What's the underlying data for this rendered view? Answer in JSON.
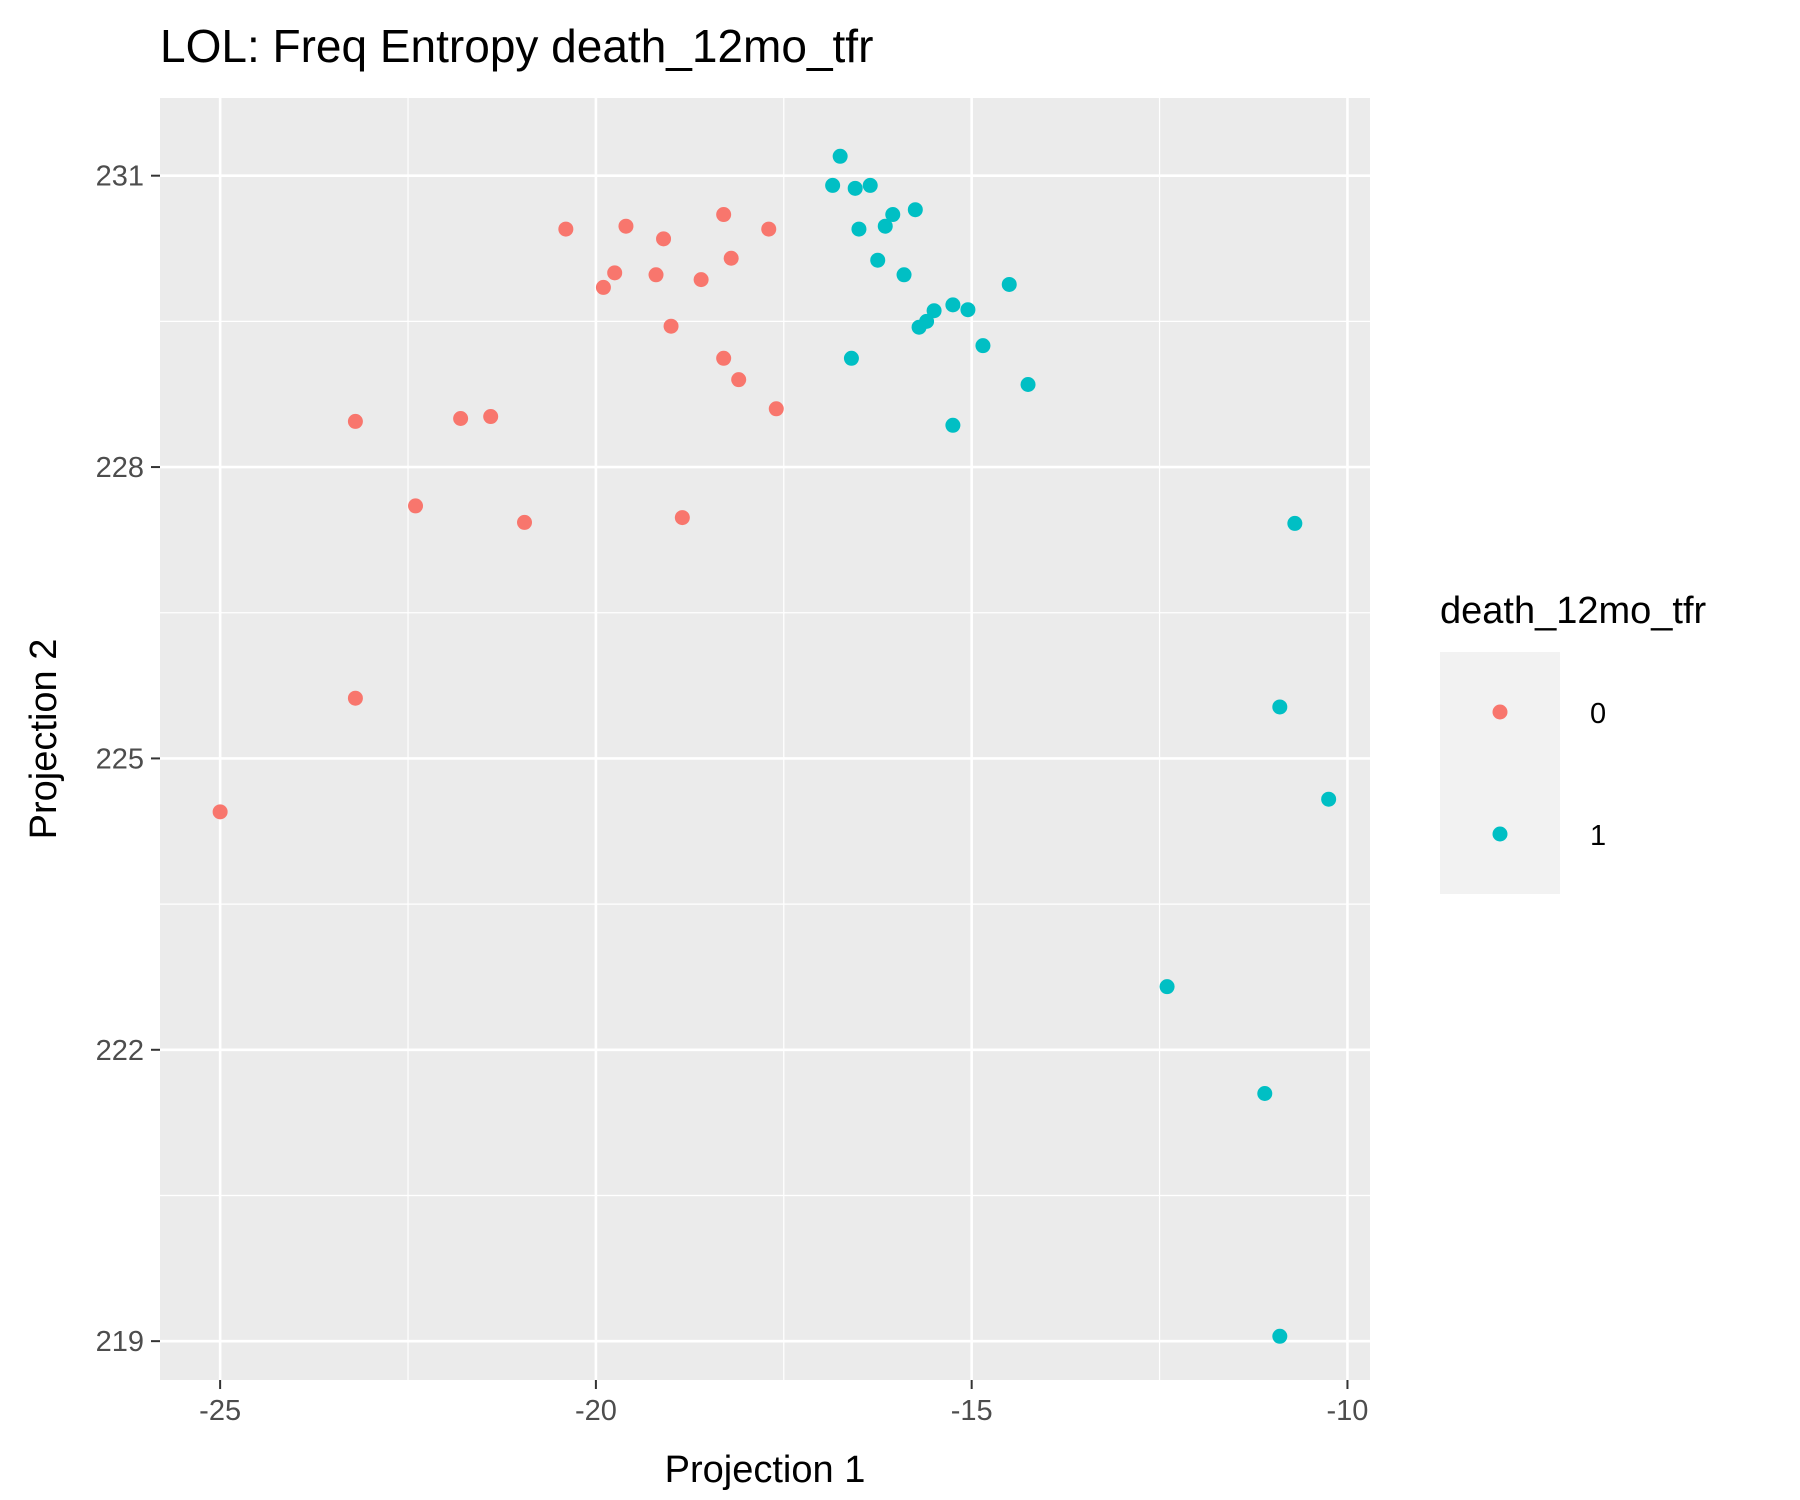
{
  "chart_data": {
    "type": "scatter",
    "title": "LOL: Freq Entropy death_12mo_tfr",
    "xlabel": "Projection 1",
    "ylabel": "Projection 2",
    "xlim": [
      -25.8,
      -9.7
    ],
    "ylim": [
      218.6,
      231.8
    ],
    "xticks": [
      -25,
      -20,
      -15,
      -10
    ],
    "yticks": [
      219,
      222,
      225,
      228,
      231
    ],
    "grid": true,
    "legend": {
      "title": "death_12mo_tfr",
      "placement": "right"
    },
    "series": [
      {
        "name": "0",
        "color": "#F8766D",
        "points": [
          [
            -20.4,
            230.45
          ],
          [
            -19.6,
            230.48
          ],
          [
            -19.1,
            230.35
          ],
          [
            -18.3,
            230.6
          ],
          [
            -17.7,
            230.45
          ],
          [
            -19.9,
            229.85
          ],
          [
            -19.75,
            230.0
          ],
          [
            -19.2,
            229.98
          ],
          [
            -18.6,
            229.93
          ],
          [
            -18.2,
            230.15
          ],
          [
            -19.0,
            229.45
          ],
          [
            -18.3,
            229.12
          ],
          [
            -18.1,
            228.9
          ],
          [
            -17.6,
            228.6
          ],
          [
            -23.2,
            228.47
          ],
          [
            -21.8,
            228.5
          ],
          [
            -21.4,
            228.52
          ],
          [
            -22.4,
            227.6
          ],
          [
            -20.95,
            227.43
          ],
          [
            -18.85,
            227.48
          ],
          [
            -23.2,
            225.62
          ],
          [
            -25.0,
            224.45
          ]
        ]
      },
      {
        "name": "1",
        "color": "#00BFC4",
        "points": [
          [
            -16.75,
            231.2
          ],
          [
            -16.85,
            230.9
          ],
          [
            -16.55,
            230.87
          ],
          [
            -16.35,
            230.9
          ],
          [
            -15.75,
            230.65
          ],
          [
            -16.05,
            230.6
          ],
          [
            -16.15,
            230.48
          ],
          [
            -16.5,
            230.45
          ],
          [
            -16.25,
            230.13
          ],
          [
            -15.9,
            229.98
          ],
          [
            -14.5,
            229.88
          ],
          [
            -15.25,
            229.67
          ],
          [
            -15.05,
            229.62
          ],
          [
            -15.5,
            229.61
          ],
          [
            -15.6,
            229.5
          ],
          [
            -15.7,
            229.44
          ],
          [
            -14.85,
            229.25
          ],
          [
            -16.6,
            229.12
          ],
          [
            -14.25,
            228.85
          ],
          [
            -15.25,
            228.43
          ],
          [
            -10.7,
            227.42
          ],
          [
            -10.9,
            225.53
          ],
          [
            -10.25,
            224.58
          ],
          [
            -12.4,
            222.65
          ],
          [
            -11.1,
            221.55
          ],
          [
            -10.9,
            219.05
          ]
        ]
      }
    ]
  }
}
